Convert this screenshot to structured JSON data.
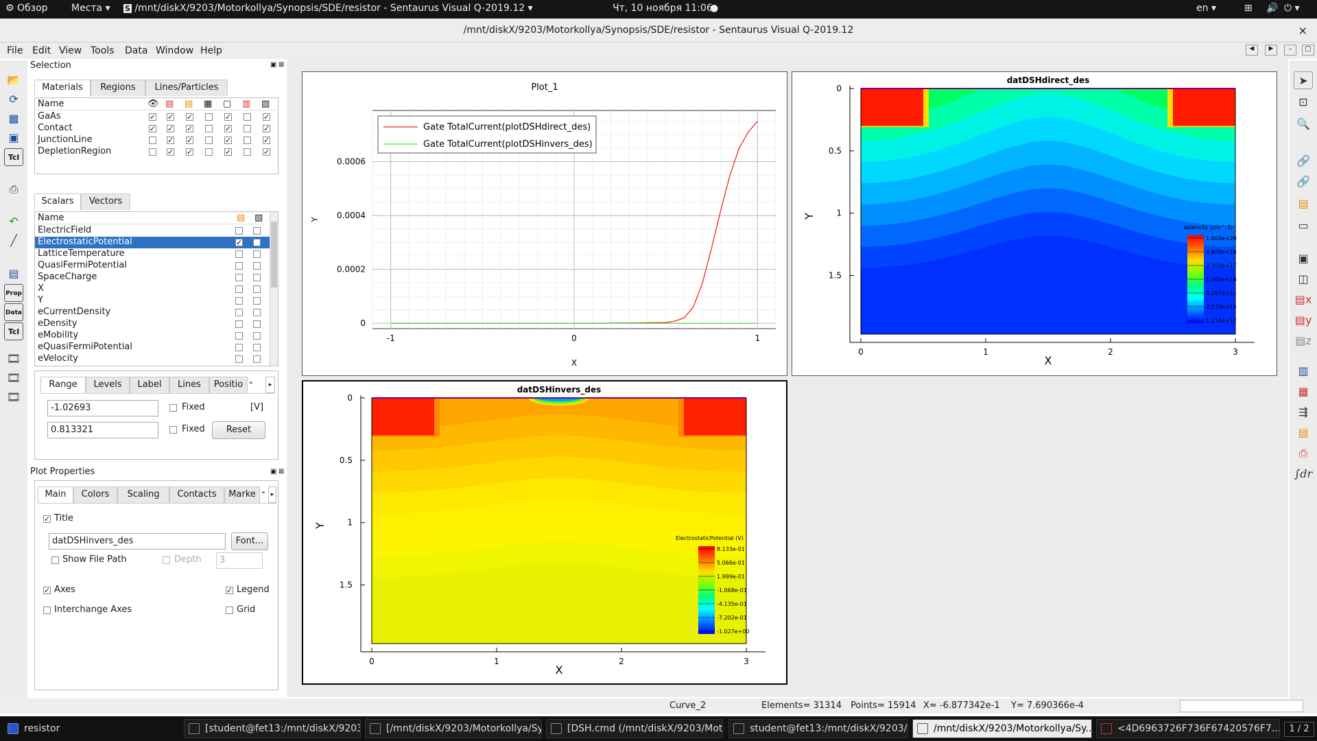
{
  "topbar": {
    "activities": "Обзор",
    "places": "Места",
    "app": "/mnt/diskX/9203/Motorkollya/Synopsis/SDE/resistor - Sentaurus Visual Q-2019.12",
    "clock": "Чт, 10 ноября  11:06",
    "lang": "en"
  },
  "window": {
    "title": "/mnt/diskX/9203/Motorkollya/Synopsis/SDE/resistor - Sentaurus Visual Q-2019.12",
    "close": "×"
  },
  "menu": [
    "File",
    "Edit",
    "View",
    "Tools",
    "Data",
    "Window",
    "Help"
  ],
  "selection": {
    "title": "Selection",
    "tabs": [
      "Materials",
      "Regions",
      "Lines/Particles"
    ],
    "col_name": "Name",
    "materials": [
      {
        "name": "GaAs",
        "checks": [
          1,
          1,
          1,
          0,
          1,
          0,
          1
        ]
      },
      {
        "name": "Contact",
        "checks": [
          1,
          1,
          1,
          0,
          1,
          0,
          1
        ]
      },
      {
        "name": "JunctionLine",
        "checks": [
          0,
          1,
          1,
          0,
          1,
          0,
          1
        ]
      },
      {
        "name": "DepletionRegion",
        "checks": [
          0,
          1,
          1,
          0,
          1,
          0,
          1
        ]
      }
    ],
    "scalar_tabs": [
      "Scalars",
      "Vectors"
    ],
    "scalars": [
      "ElectricField",
      "ElectrostaticPotential",
      "LatticeTemperature",
      "QuasiFermiPotential",
      "SpaceCharge",
      "X",
      "Y",
      "eCurrentDensity",
      "eDensity",
      "eMobility",
      "eQuasiFermiPotential",
      "eVelocity"
    ],
    "scalar_selected_index": 1,
    "range_tabs": [
      "Range",
      "Levels",
      "Label",
      "Lines",
      "Positio"
    ],
    "range": {
      "min": "-1.02693",
      "max": "0.813321",
      "fixed": "Fixed",
      "unit": "[V]",
      "reset": "Reset"
    }
  },
  "plot_properties": {
    "title": "Plot Properties",
    "tabs": [
      "Main",
      "Colors",
      "Scaling",
      "Contacts",
      "Marke"
    ],
    "title_label": "Title",
    "title_value": "datDSHinvers_des",
    "font_btn": "Font...",
    "show_file_path": "Show File Path",
    "depth": "Depth",
    "depth_value": "3",
    "axes": "Axes",
    "legend": "Legend",
    "interchange": "Interchange Axes",
    "grid": "Grid"
  },
  "statusbar": {
    "curve": "Curve_2",
    "elements": "Elements= 31314",
    "points": "Points= 15914",
    "x": "X= -6.877342e-1",
    "y": "Y= 7.690366e-4"
  },
  "taskbar": {
    "start": "resistor",
    "items": [
      "[student@fet13:/mnt/diskX/9203...",
      "[/mnt/diskX/9203/Motorkollya/Sy...",
      "[DSH.cmd (/mnt/diskX/9203/Mot...",
      "student@fet13:/mnt/diskX/9203/...",
      "/mnt/diskX/9203/Motorkollya/Sy...",
      "<4D6963726F736F67420576F7..."
    ],
    "pager": "1 / 2"
  },
  "chart_data": [
    {
      "type": "line",
      "title": "Plot_1",
      "xlabel": "X",
      "ylabel": "Y",
      "xlim": [
        -1.1,
        1.1
      ],
      "ylim": [
        -2e-05,
        0.00079
      ],
      "xticks": [
        "-1",
        "0",
        "1"
      ],
      "yticks": [
        "0",
        "0.0002",
        "0.0004",
        "0.0006"
      ],
      "ytick_values": [
        0,
        0.0002,
        0.0004,
        0.0006
      ],
      "grid": true,
      "legend_position": "top-left",
      "series": [
        {
          "name": "Gate TotalCurrent(plotDSHdirect_des)",
          "color": "#ff2020",
          "x": [
            -1,
            -0.5,
            0,
            0.3,
            0.5,
            0.55,
            0.6,
            0.65,
            0.7,
            0.75,
            0.8,
            0.85,
            0.9,
            0.95,
            1.0
          ],
          "y": [
            0,
            0,
            0,
            1e-06,
            3e-06,
            8e-06,
            2e-05,
            6e-05,
            0.00015,
            0.00028,
            0.00042,
            0.00055,
            0.00065,
            0.00071,
            0.00075
          ]
        },
        {
          "name": "Gate TotalCurrent(plotDSHinvers_des)",
          "color": "#3ee03e",
          "x": [
            -1,
            -0.5,
            0,
            0.5,
            1.0
          ],
          "y": [
            0,
            0,
            0,
            0,
            0
          ]
        }
      ]
    },
    {
      "type": "heatmap",
      "title": "datDSHdirect_des",
      "xlabel": "X",
      "ylabel": "Y",
      "xticks": [
        "0",
        "1",
        "2",
        "3"
      ],
      "yticks": [
        "0",
        "0.5",
        "1",
        "1.5"
      ],
      "legend_title": "eDensity (cm^-3)",
      "legend_values": [
        "1.003e+20",
        "4.808e+18",
        "2.303e+17",
        "1.104e+16",
        "5.287e+14",
        "2.533e+13",
        "1.214e+12"
      ]
    },
    {
      "type": "heatmap",
      "title": "datDSHinvers_des",
      "xlabel": "X",
      "ylabel": "Y",
      "xticks": [
        "0",
        "1",
        "2",
        "3"
      ],
      "yticks": [
        "0",
        "0.5",
        "1",
        "1.5"
      ],
      "legend_title": "ElectrostaticPotential (V)",
      "legend_values": [
        "8.133e-01",
        "5.066e-01",
        "1.999e-01",
        "-1.068e-01",
        "-4.135e-01",
        "-7.202e-01",
        "-1.027e+00"
      ]
    }
  ]
}
